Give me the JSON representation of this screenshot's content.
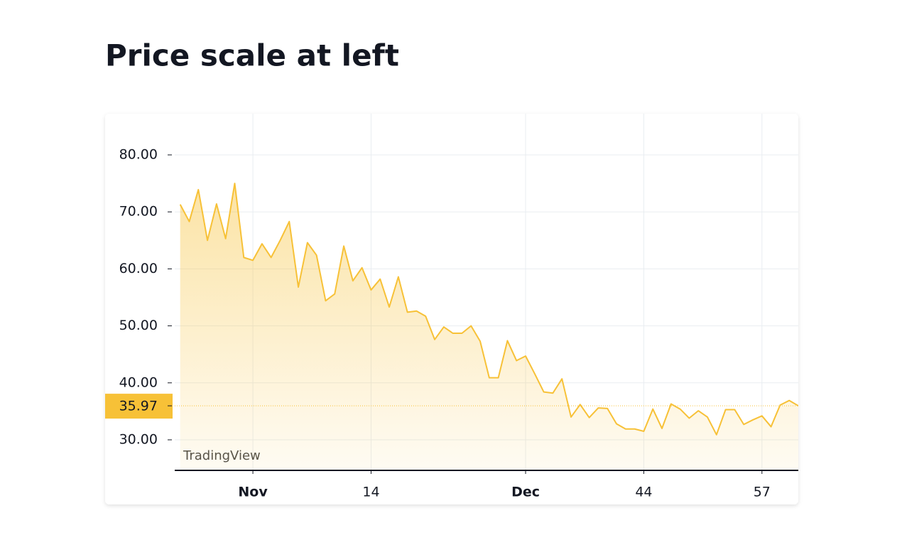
{
  "title": "Price scale at left",
  "chart_data": {
    "type": "area",
    "watermark": "TradingView",
    "color": "#f7c137",
    "x": [
      -7,
      -6,
      -5,
      -4,
      -3,
      -2,
      -1,
      0,
      1,
      2,
      3,
      4,
      5,
      6,
      7,
      8,
      9,
      10,
      11,
      12,
      13,
      14,
      15,
      16,
      17,
      18,
      19,
      20,
      21,
      22,
      23,
      24,
      25,
      26,
      27,
      28,
      29,
      30,
      31,
      32,
      33,
      34,
      35,
      36,
      37,
      38,
      39,
      40,
      41,
      42,
      43,
      44,
      45,
      46,
      47,
      48,
      49,
      50,
      51,
      52,
      53,
      54,
      55,
      56,
      57,
      58,
      59,
      60,
      61
    ],
    "values": [
      71.3,
      68.3,
      73.9,
      65.0,
      71.4,
      65.3,
      75.0,
      62.0,
      61.5,
      64.4,
      62.0,
      65.0,
      68.3,
      56.8,
      64.6,
      62.4,
      54.4,
      55.6,
      64.0,
      57.9,
      60.2,
      56.3,
      58.2,
      53.3,
      58.6,
      52.4,
      52.6,
      51.7,
      47.6,
      49.8,
      48.7,
      48.7,
      50.0,
      47.3,
      40.9,
      40.9,
      47.4,
      43.9,
      44.7,
      41.6,
      38.4,
      38.2,
      40.7,
      34.0,
      36.2,
      33.9,
      35.6,
      35.5,
      32.8,
      31.9,
      31.9,
      31.5,
      35.4,
      32.0,
      36.3,
      35.4,
      33.8,
      35.1,
      34.0,
      30.9,
      35.3,
      35.3,
      32.7,
      33.5,
      34.2,
      32.3,
      36.1,
      36.9,
      35.97
    ],
    "xlim": [
      -7.6,
      61
    ],
    "xticks": [
      {
        "value": 1,
        "label": "Nov"
      },
      14,
      {
        "value": 31,
        "label": "Dec"
      },
      44,
      57
    ],
    "ylim": [
      24.64,
      87.23
    ],
    "yticks": [
      {
        "value": 30,
        "label": "30.00"
      },
      {
        "value": 40,
        "label": "40.00"
      },
      {
        "value": 50,
        "label": "50.00"
      },
      {
        "value": 60,
        "label": "60.00"
      },
      {
        "value": 70,
        "label": "70.00"
      },
      {
        "value": 80,
        "label": "80.00"
      }
    ],
    "grid": true,
    "price_scale": "left"
  }
}
